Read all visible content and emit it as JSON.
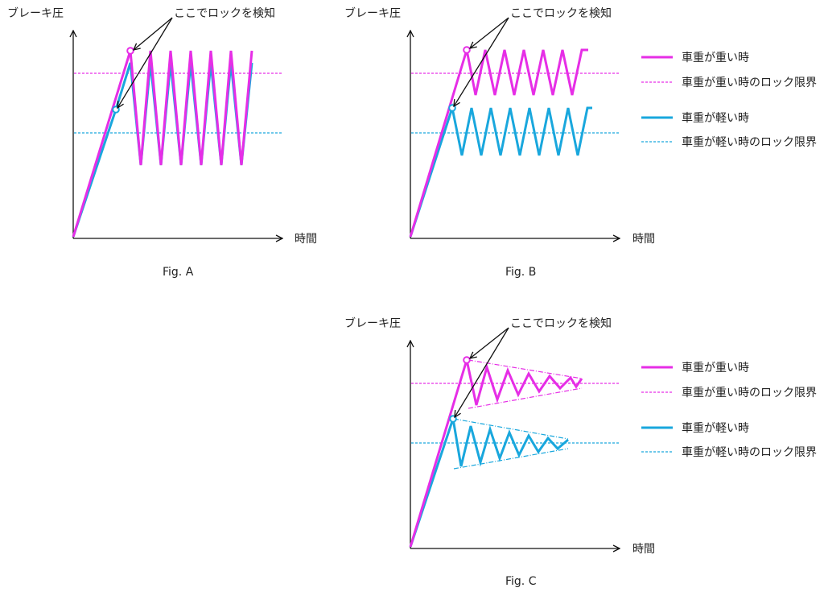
{
  "colors": {
    "heavy": "#e62ee6",
    "light": "#19a7dd",
    "axis": "#111111"
  },
  "labels": {
    "y_axis": "ブレーキ圧",
    "x_axis": "時間",
    "annotation": "ここでロックを検知"
  },
  "legend": {
    "heavy_solid": "車重が重い時",
    "heavy_dashed": "車重が重い時のロック限界",
    "light_solid": "車重が軽い時",
    "light_dashed": "車重が軽い時のロック限界"
  },
  "captions": {
    "a": "Fig. A",
    "b": "Fig. B",
    "c": "Fig. C"
  }
}
